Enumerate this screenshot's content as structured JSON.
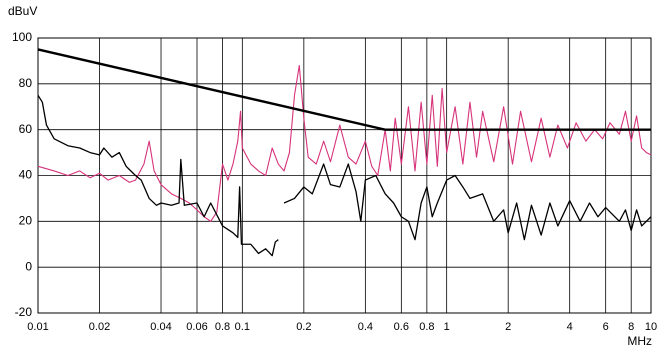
{
  "chart_data": {
    "type": "line",
    "y_label": "dBuV",
    "x_label": "MHz",
    "xscale": "log",
    "grid": true,
    "xlim": [
      0.01,
      10
    ],
    "ylim": [
      -20,
      100
    ],
    "xticks": [
      0.01,
      0.02,
      0.04,
      0.06,
      {
        "value": 0.08,
        "label": "0.8"
      },
      0.1,
      0.2,
      0.4,
      0.6,
      0.8,
      1,
      2,
      4,
      6,
      8,
      10
    ],
    "yticks": [
      -20,
      0,
      20,
      40,
      60,
      80,
      100
    ],
    "series": [
      {
        "color": "#d6337a",
        "width": 1.1,
        "x": [
          0.01,
          0.012,
          0.014,
          0.016,
          0.018,
          0.02,
          0.022,
          0.025,
          0.028,
          0.03,
          0.033,
          0.035,
          0.037,
          0.04,
          0.045,
          0.05,
          0.055,
          0.06,
          0.065,
          0.07,
          0.075,
          0.08,
          0.085,
          0.09,
          0.095,
          0.098,
          0.1,
          0.11,
          0.12,
          0.13,
          0.14,
          0.15,
          0.16,
          0.17,
          0.18,
          0.19,
          0.2,
          0.21,
          0.23,
          0.25,
          0.27,
          0.3,
          0.33,
          0.36,
          0.4,
          0.43,
          0.46,
          0.5,
          0.53,
          0.56,
          0.6,
          0.65,
          0.7,
          0.75,
          0.8,
          0.85,
          0.9,
          0.95,
          1,
          1.1,
          1.2,
          1.3,
          1.4,
          1.5,
          1.7,
          1.9,
          2.1,
          2.3,
          2.6,
          2.9,
          3.2,
          3.5,
          3.9,
          4.3,
          4.8,
          5.3,
          5.8,
          6.3,
          7,
          7.5,
          8,
          8.5,
          9,
          9.5,
          10
        ],
        "values": [
          44,
          42,
          40,
          42,
          39,
          41,
          38,
          40,
          37,
          38,
          45,
          55,
          42,
          36,
          32,
          30,
          28,
          25,
          22,
          20,
          24,
          45,
          38,
          45,
          55,
          68,
          52,
          45,
          42,
          40,
          52,
          45,
          42,
          50,
          75,
          88,
          65,
          48,
          45,
          55,
          46,
          62,
          48,
          45,
          55,
          44,
          40,
          60,
          42,
          65,
          45,
          70,
          42,
          72,
          45,
          75,
          44,
          78,
          50,
          70,
          45,
          72,
          48,
          68,
          46,
          70,
          45,
          68,
          46,
          65,
          48,
          62,
          52,
          63,
          55,
          60,
          56,
          63,
          58,
          68,
          55,
          66,
          52,
          50,
          49
        ]
      },
      {
        "color": "#000000",
        "width": 1.3,
        "x": [
          0.01,
          0.0105,
          0.011,
          0.012,
          0.014,
          0.016,
          0.018,
          0.02,
          0.021,
          0.023,
          0.025,
          0.027,
          0.03,
          0.032,
          0.035,
          0.038,
          0.04,
          0.045,
          0.049,
          0.05,
          0.052,
          0.06,
          0.065,
          0.07,
          0.08,
          0.09,
          0.095,
          0.097,
          0.099,
          0.11,
          0.12,
          0.13,
          0.14,
          0.145,
          0.15,
          0.155,
          0.16,
          0.18,
          0.2,
          0.22,
          0.25,
          0.27,
          0.3,
          0.33,
          0.36,
          0.38,
          0.4,
          0.45,
          0.5,
          0.55,
          0.6,
          0.65,
          0.7,
          0.75,
          0.8,
          0.85,
          0.9,
          1,
          1.1,
          1.2,
          1.3,
          1.5,
          1.7,
          1.9,
          2,
          2.2,
          2.4,
          2.6,
          2.9,
          3.2,
          3.5,
          4,
          4.5,
          5,
          5.5,
          6,
          7,
          7.5,
          8,
          8.5,
          9,
          10
        ],
        "values": [
          75,
          72,
          62,
          56,
          53,
          52,
          50,
          49,
          52,
          48,
          50,
          44,
          40,
          38,
          30,
          27,
          28,
          27,
          28,
          47,
          27,
          28,
          22,
          28,
          18,
          15,
          13,
          35,
          10,
          10,
          6,
          8,
          5,
          11,
          12,
          null,
          28,
          30,
          35,
          32,
          45,
          36,
          35,
          45,
          33,
          20,
          38,
          40,
          32,
          28,
          22,
          20,
          12,
          28,
          35,
          22,
          28,
          38,
          40,
          35,
          30,
          32,
          20,
          25,
          15,
          28,
          12,
          27,
          14,
          28,
          18,
          29,
          20,
          28,
          22,
          26,
          20,
          25,
          16,
          25,
          18,
          22
        ]
      },
      {
        "color": "#000000",
        "width": 2.4,
        "x": [
          0.01,
          0.5,
          10
        ],
        "values": [
          95,
          60,
          60
        ]
      }
    ]
  }
}
